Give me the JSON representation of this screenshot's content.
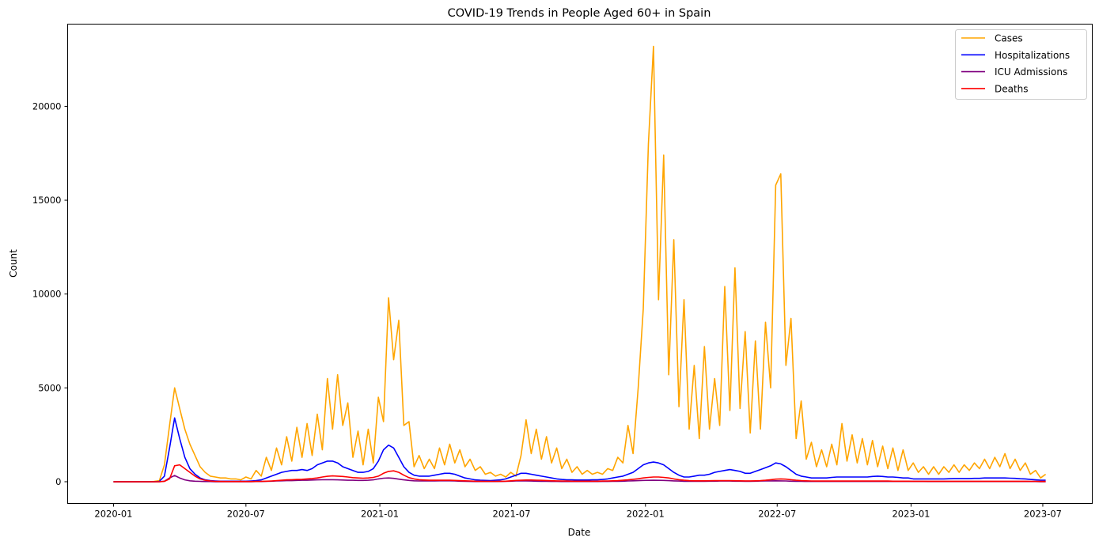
{
  "chart_data": {
    "type": "line",
    "title": "COVID-19 Trends in People Aged 60+ in Spain",
    "xlabel": "Date",
    "ylabel": "Count",
    "xlim": [
      "2019-10-30",
      "2023-09-07"
    ],
    "ylim": [
      -1160,
      24380
    ],
    "grid": false,
    "legend_position": "top-right",
    "x_ticks": [
      "2020-01",
      "2020-07",
      "2021-01",
      "2021-07",
      "2022-01",
      "2022-07",
      "2023-01",
      "2023-07"
    ],
    "y_ticks": [
      0,
      5000,
      10000,
      15000,
      20000
    ],
    "x": [
      "2020-01-01",
      "2020-01-08",
      "2020-01-15",
      "2020-01-22",
      "2020-01-29",
      "2020-02-05",
      "2020-02-12",
      "2020-02-19",
      "2020-02-26",
      "2020-03-04",
      "2020-03-11",
      "2020-03-18",
      "2020-03-25",
      "2020-04-01",
      "2020-04-08",
      "2020-04-15",
      "2020-04-22",
      "2020-04-29",
      "2020-05-06",
      "2020-05-13",
      "2020-05-20",
      "2020-05-27",
      "2020-06-03",
      "2020-06-10",
      "2020-06-17",
      "2020-06-24",
      "2020-07-01",
      "2020-07-08",
      "2020-07-15",
      "2020-07-22",
      "2020-07-29",
      "2020-08-05",
      "2020-08-12",
      "2020-08-19",
      "2020-08-26",
      "2020-09-02",
      "2020-09-09",
      "2020-09-16",
      "2020-09-23",
      "2020-09-30",
      "2020-10-07",
      "2020-10-14",
      "2020-10-21",
      "2020-10-28",
      "2020-11-04",
      "2020-11-11",
      "2020-11-18",
      "2020-11-25",
      "2020-12-02",
      "2020-12-09",
      "2020-12-16",
      "2020-12-23",
      "2020-12-30",
      "2021-01-06",
      "2021-01-13",
      "2021-01-20",
      "2021-01-27",
      "2021-02-03",
      "2021-02-10",
      "2021-02-17",
      "2021-02-24",
      "2021-03-03",
      "2021-03-10",
      "2021-03-17",
      "2021-03-24",
      "2021-03-31",
      "2021-04-07",
      "2021-04-14",
      "2021-04-21",
      "2021-04-28",
      "2021-05-05",
      "2021-05-12",
      "2021-05-19",
      "2021-05-26",
      "2021-06-02",
      "2021-06-09",
      "2021-06-16",
      "2021-06-23",
      "2021-06-30",
      "2021-07-07",
      "2021-07-14",
      "2021-07-21",
      "2021-07-28",
      "2021-08-04",
      "2021-08-11",
      "2021-08-18",
      "2021-08-25",
      "2021-09-01",
      "2021-09-08",
      "2021-09-15",
      "2021-09-22",
      "2021-09-29",
      "2021-10-06",
      "2021-10-13",
      "2021-10-20",
      "2021-10-27",
      "2021-11-03",
      "2021-11-10",
      "2021-11-17",
      "2021-11-24",
      "2021-12-01",
      "2021-12-08",
      "2021-12-15",
      "2021-12-22",
      "2021-12-29",
      "2022-01-05",
      "2022-01-12",
      "2022-01-19",
      "2022-01-26",
      "2022-02-02",
      "2022-02-09",
      "2022-02-16",
      "2022-02-23",
      "2022-03-02",
      "2022-03-09",
      "2022-03-16",
      "2022-03-23",
      "2022-03-30",
      "2022-04-06",
      "2022-04-13",
      "2022-04-20",
      "2022-04-27",
      "2022-05-04",
      "2022-05-11",
      "2022-05-18",
      "2022-05-25",
      "2022-06-01",
      "2022-06-08",
      "2022-06-15",
      "2022-06-22",
      "2022-06-29",
      "2022-07-06",
      "2022-07-13",
      "2022-07-20",
      "2022-07-27",
      "2022-08-03",
      "2022-08-10",
      "2022-08-17",
      "2022-08-24",
      "2022-08-31",
      "2022-09-07",
      "2022-09-14",
      "2022-09-21",
      "2022-09-28",
      "2022-10-05",
      "2022-10-12",
      "2022-10-19",
      "2022-10-26",
      "2022-11-02",
      "2022-11-09",
      "2022-11-16",
      "2022-11-23",
      "2022-11-30",
      "2022-12-07",
      "2022-12-14",
      "2022-12-21",
      "2022-12-28",
      "2023-01-04",
      "2023-01-11",
      "2023-01-18",
      "2023-01-25",
      "2023-02-01",
      "2023-02-08",
      "2023-02-15",
      "2023-02-22",
      "2023-03-01",
      "2023-03-08",
      "2023-03-15",
      "2023-03-22",
      "2023-03-29",
      "2023-04-05",
      "2023-04-12",
      "2023-04-19",
      "2023-04-26",
      "2023-05-03",
      "2023-05-10",
      "2023-05-17",
      "2023-05-24",
      "2023-05-31",
      "2023-06-07",
      "2023-06-14",
      "2023-06-21",
      "2023-06-28",
      "2023-07-05"
    ],
    "series": [
      {
        "name": "Cases",
        "color": "#FFA500",
        "values": [
          0,
          0,
          0,
          0,
          0,
          0,
          0,
          0,
          20,
          60,
          900,
          3000,
          5000,
          3900,
          2800,
          2000,
          1400,
          800,
          500,
          300,
          250,
          200,
          200,
          150,
          150,
          100,
          250,
          150,
          600,
          300,
          1300,
          600,
          1800,
          900,
          2400,
          1100,
          2900,
          1300,
          3100,
          1400,
          3600,
          1700,
          5500,
          2800,
          5700,
          3000,
          4200,
          1300,
          2700,
          900,
          2800,
          1000,
          4500,
          3200,
          9800,
          6500,
          8600,
          3000,
          3200,
          800,
          1400,
          700,
          1200,
          700,
          1800,
          900,
          2000,
          1000,
          1700,
          800,
          1200,
          600,
          800,
          400,
          500,
          300,
          400,
          250,
          500,
          300,
          1400,
          3300,
          1500,
          2800,
          1200,
          2400,
          1000,
          1800,
          700,
          1200,
          500,
          800,
          400,
          600,
          400,
          500,
          400,
          700,
          600,
          1300,
          1000,
          3000,
          1500,
          5000,
          9200,
          18000,
          23200,
          9700,
          17400,
          5700,
          12900,
          4000,
          9700,
          2800,
          6200,
          2300,
          7200,
          2800,
          5500,
          3000,
          10400,
          3800,
          11400,
          3900,
          8000,
          2600,
          7500,
          2800,
          8500,
          5000,
          15800,
          16400,
          6200,
          8700,
          2300,
          4300,
          1200,
          2100,
          800,
          1700,
          800,
          2000,
          900,
          3100,
          1100,
          2500,
          1000,
          2300,
          900,
          2200,
          800,
          1900,
          700,
          1800,
          600,
          1700,
          600,
          1000,
          500,
          800,
          400,
          800,
          400,
          800,
          500,
          900,
          500,
          900,
          600,
          1000,
          700,
          1200,
          700,
          1300,
          800,
          1500,
          700,
          1200,
          600,
          1000,
          400,
          600,
          200,
          400
        ]
      },
      {
        "name": "Hospitalizations",
        "color": "#0000FF",
        "values": [
          0,
          0,
          0,
          0,
          0,
          0,
          0,
          0,
          0,
          20,
          300,
          1800,
          3400,
          2300,
          1300,
          700,
          400,
          200,
          100,
          60,
          40,
          30,
          30,
          30,
          30,
          30,
          30,
          40,
          60,
          100,
          200,
          300,
          400,
          500,
          550,
          600,
          600,
          650,
          600,
          700,
          900,
          1000,
          1100,
          1100,
          1000,
          800,
          700,
          600,
          500,
          500,
          550,
          700,
          1100,
          1700,
          1950,
          1800,
          1300,
          800,
          500,
          350,
          300,
          300,
          300,
          350,
          400,
          450,
          450,
          400,
          300,
          200,
          150,
          100,
          80,
          70,
          60,
          80,
          100,
          150,
          250,
          350,
          450,
          450,
          400,
          350,
          300,
          250,
          200,
          150,
          120,
          100,
          100,
          90,
          90,
          90,
          100,
          100,
          120,
          150,
          200,
          250,
          300,
          400,
          500,
          700,
          900,
          1000,
          1050,
          1000,
          900,
          700,
          500,
          350,
          250,
          250,
          300,
          350,
          350,
          400,
          500,
          550,
          600,
          650,
          600,
          550,
          450,
          450,
          550,
          650,
          750,
          850,
          1000,
          950,
          800,
          600,
          400,
          300,
          250,
          200,
          200,
          200,
          200,
          230,
          250,
          250,
          250,
          250,
          250,
          250,
          250,
          280,
          300,
          280,
          250,
          250,
          230,
          200,
          200,
          150,
          150,
          150,
          150,
          150,
          150,
          150,
          160,
          170,
          170,
          170,
          170,
          180,
          180,
          200,
          200,
          200,
          200,
          200,
          190,
          180,
          160,
          150,
          120,
          100,
          80,
          80
        ]
      },
      {
        "name": "ICU Admissions",
        "color": "#800080",
        "values": [
          0,
          0,
          0,
          0,
          0,
          0,
          0,
          0,
          0,
          0,
          30,
          200,
          330,
          200,
          100,
          50,
          30,
          20,
          10,
          10,
          5,
          5,
          5,
          5,
          5,
          5,
          5,
          5,
          10,
          10,
          20,
          30,
          40,
          50,
          60,
          60,
          70,
          80,
          80,
          90,
          100,
          110,
          110,
          110,
          100,
          90,
          80,
          80,
          70,
          70,
          80,
          100,
          150,
          190,
          200,
          180,
          140,
          100,
          70,
          50,
          40,
          40,
          40,
          40,
          50,
          50,
          50,
          40,
          30,
          20,
          15,
          10,
          10,
          10,
          10,
          10,
          15,
          20,
          30,
          40,
          40,
          40,
          35,
          30,
          25,
          20,
          15,
          15,
          10,
          10,
          10,
          10,
          10,
          10,
          10,
          10,
          15,
          15,
          20,
          25,
          30,
          40,
          50,
          60,
          70,
          75,
          80,
          75,
          70,
          60,
          45,
          35,
          25,
          20,
          20,
          25,
          25,
          30,
          30,
          35,
          35,
          35,
          30,
          30,
          25,
          25,
          30,
          35,
          40,
          45,
          50,
          45,
          40,
          30,
          25,
          20,
          15,
          15,
          15,
          15,
          15,
          15,
          15,
          15,
          15,
          15,
          15,
          15,
          15,
          15,
          15,
          15,
          15,
          15,
          15,
          15,
          15,
          15,
          15,
          15,
          10,
          10,
          10,
          10,
          10,
          10,
          10,
          10,
          10,
          10,
          10,
          10,
          10,
          10,
          10,
          10,
          10,
          10,
          10,
          10,
          10,
          10,
          5,
          5
        ]
      },
      {
        "name": "Deaths",
        "color": "#FF0000",
        "values": [
          0,
          0,
          0,
          0,
          0,
          0,
          0,
          0,
          0,
          0,
          20,
          150,
          850,
          900,
          700,
          500,
          300,
          150,
          80,
          40,
          20,
          15,
          10,
          10,
          10,
          10,
          10,
          10,
          15,
          20,
          30,
          40,
          60,
          80,
          100,
          110,
          120,
          130,
          150,
          170,
          200,
          250,
          290,
          310,
          300,
          280,
          250,
          220,
          200,
          190,
          200,
          230,
          300,
          450,
          550,
          580,
          500,
          350,
          220,
          150,
          110,
          90,
          80,
          80,
          80,
          80,
          80,
          70,
          60,
          50,
          40,
          30,
          25,
          20,
          20,
          20,
          25,
          30,
          50,
          70,
          80,
          90,
          90,
          85,
          75,
          65,
          55,
          45,
          40,
          35,
          30,
          30,
          30,
          30,
          30,
          30,
          35,
          40,
          50,
          60,
          80,
          100,
          130,
          160,
          200,
          230,
          250,
          250,
          230,
          200,
          150,
          110,
          80,
          60,
          50,
          50,
          50,
          55,
          60,
          60,
          60,
          60,
          55,
          50,
          45,
          45,
          50,
          60,
          80,
          110,
          140,
          150,
          140,
          110,
          80,
          60,
          50,
          40,
          35,
          35,
          35,
          35,
          35,
          35,
          35,
          35,
          35,
          35,
          35,
          35,
          35,
          35,
          35,
          30,
          30,
          30,
          30,
          25,
          25,
          25,
          25,
          25,
          25,
          25,
          25,
          25,
          25,
          25,
          25,
          25,
          25,
          25,
          25,
          25,
          25,
          25,
          25,
          25,
          25,
          25,
          20,
          20,
          15,
          15
        ]
      }
    ]
  }
}
